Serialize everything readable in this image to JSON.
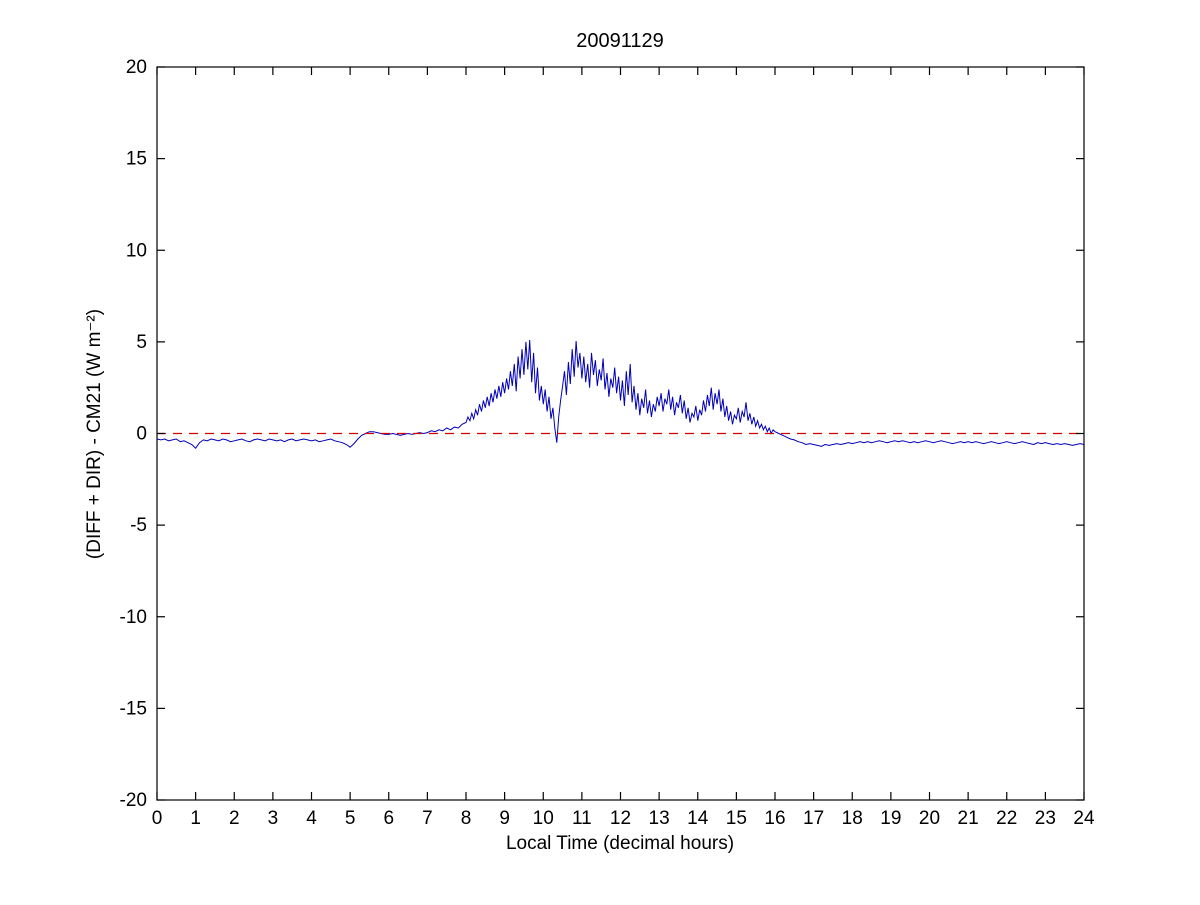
{
  "chart_data": {
    "type": "line",
    "title": "20091129",
    "xlabel": "Local Time (decimal hours)",
    "ylabel": "(DIFF + DIR) - CM21 (W m⁻²)",
    "xlim": [
      0,
      24
    ],
    "ylim": [
      -20,
      20
    ],
    "xticks": [
      0,
      1,
      2,
      3,
      4,
      5,
      6,
      7,
      8,
      9,
      10,
      11,
      12,
      13,
      14,
      15,
      16,
      17,
      18,
      19,
      20,
      21,
      22,
      23,
      24
    ],
    "yticks": [
      -20,
      -15,
      -10,
      -5,
      0,
      5,
      10,
      15,
      20
    ],
    "grid": false,
    "legend_position": "none",
    "axis_color": "#000000",
    "background_color": "#ffffff",
    "series": [
      {
        "name": "diff-plus-dir-minus-cm21",
        "color": "#0000bb",
        "style": "solid",
        "segments": [
          {
            "x0": 0.0,
            "dx": 0.1,
            "y": [
              -0.3,
              -0.35,
              -0.3,
              -0.4,
              -0.35,
              -0.3,
              -0.45,
              -0.4,
              -0.5,
              -0.6,
              -0.8,
              -0.5,
              -0.35,
              -0.4,
              -0.3,
              -0.35,
              -0.4,
              -0.3,
              -0.35,
              -0.45,
              -0.4,
              -0.35,
              -0.3,
              -0.4,
              -0.45,
              -0.35,
              -0.3,
              -0.35,
              -0.4,
              -0.3,
              -0.35,
              -0.4,
              -0.35,
              -0.45,
              -0.35,
              -0.3,
              -0.4,
              -0.35,
              -0.3,
              -0.35,
              -0.4,
              -0.35,
              -0.45,
              -0.4,
              -0.35,
              -0.3,
              -0.4,
              -0.45,
              -0.5,
              -0.6
            ]
          },
          {
            "x0": 5.0,
            "dx": 0.1,
            "y": [
              -0.75,
              -0.55,
              -0.3,
              -0.1,
              0.0,
              0.1,
              0.1,
              0.05,
              0.0,
              -0.05,
              -0.05,
              0.0,
              -0.05,
              -0.1,
              -0.05,
              0.0,
              -0.05,
              0.0,
              0.05,
              0.0,
              0.05,
              0.15,
              0.1,
              0.2,
              0.15,
              0.3,
              0.2,
              0.35,
              0.3,
              0.5
            ]
          },
          {
            "x0": 8.0,
            "dx": 0.05,
            "y": [
              0.6,
              0.9,
              0.7,
              1.1,
              0.8,
              1.3,
              1.0,
              1.6,
              1.2,
              1.8,
              1.4,
              2.0,
              1.5,
              2.2,
              1.7,
              2.4,
              1.9,
              2.6,
              2.0,
              2.8,
              2.2,
              3.0,
              2.4,
              3.4,
              2.6,
              3.8,
              2.3,
              4.2,
              3.0,
              4.6,
              3.2,
              5.0,
              3.5,
              5.1,
              2.8,
              4.4,
              2.2,
              3.6,
              1.8,
              2.6,
              1.6,
              2.4,
              1.2,
              2.0,
              0.8,
              1.4,
              0.3,
              -0.5,
              0.9,
              1.8,
              2.6,
              3.4,
              2.1,
              3.9,
              2.7,
              4.6,
              3.1,
              5.05,
              3.6,
              4.4,
              3.0,
              4.2,
              2.8,
              3.8,
              2.5,
              4.4,
              3.2,
              4.0,
              2.6,
              3.5,
              2.9,
              4.1,
              2.4,
              3.3,
              2.0,
              3.0,
              2.5,
              3.6,
              2.2,
              3.1,
              1.8,
              2.9,
              1.5,
              3.4,
              2.1,
              3.8,
              1.7,
              2.6,
              1.3,
              2.2,
              1.0,
              1.9,
              1.4,
              2.4,
              1.1,
              1.8,
              0.9,
              1.6,
              1.2,
              2.0,
              1.5,
              2.2,
              1.2,
              1.9,
              1.6,
              2.4,
              1.3,
              2.0,
              1.0,
              1.7,
              1.4,
              2.1,
              1.1,
              1.8,
              0.8,
              1.4,
              0.6,
              1.1,
              0.9,
              1.5,
              0.7,
              1.3,
              1.0,
              1.8,
              1.2,
              2.1,
              1.5,
              2.5,
              1.3,
              2.2,
              1.6,
              2.4,
              1.2,
              1.9,
              0.9,
              1.5,
              0.7,
              1.2,
              0.5,
              1.0,
              0.8,
              1.4,
              0.6,
              1.2,
              0.9,
              1.7,
              0.7,
              1.1,
              0.5,
              0.9,
              0.4,
              0.7,
              0.3,
              0.5,
              0.2,
              0.4,
              0.1,
              0.3,
              0.0,
              0.2
            ]
          },
          {
            "x0": 16.0,
            "dx": 0.1,
            "y": [
              0.1,
              0.0,
              -0.1,
              -0.2,
              -0.3,
              -0.35,
              -0.45,
              -0.5,
              -0.6,
              -0.55,
              -0.6,
              -0.65,
              -0.7,
              -0.6,
              -0.65,
              -0.6,
              -0.55,
              -0.6,
              -0.55,
              -0.5,
              -0.55,
              -0.5,
              -0.45,
              -0.5,
              -0.45,
              -0.5,
              -0.45,
              -0.4,
              -0.45,
              -0.5,
              -0.45,
              -0.4,
              -0.45,
              -0.4,
              -0.45,
              -0.5,
              -0.45,
              -0.5,
              -0.45,
              -0.4,
              -0.45,
              -0.5,
              -0.45,
              -0.4,
              -0.45,
              -0.5,
              -0.55,
              -0.5,
              -0.45,
              -0.5,
              -0.45,
              -0.5,
              -0.45,
              -0.5,
              -0.55,
              -0.5,
              -0.45,
              -0.5,
              -0.55,
              -0.5,
              -0.45,
              -0.5,
              -0.55,
              -0.5,
              -0.45,
              -0.5,
              -0.55,
              -0.6,
              -0.5,
              -0.55,
              -0.5,
              -0.55,
              -0.6,
              -0.55,
              -0.6,
              -0.55,
              -0.6,
              -0.65,
              -0.6,
              -0.55,
              -0.6
            ]
          }
        ]
      },
      {
        "name": "zero-reference-line",
        "color": "#d40000",
        "style": "dashed",
        "y_const": 0
      }
    ]
  }
}
